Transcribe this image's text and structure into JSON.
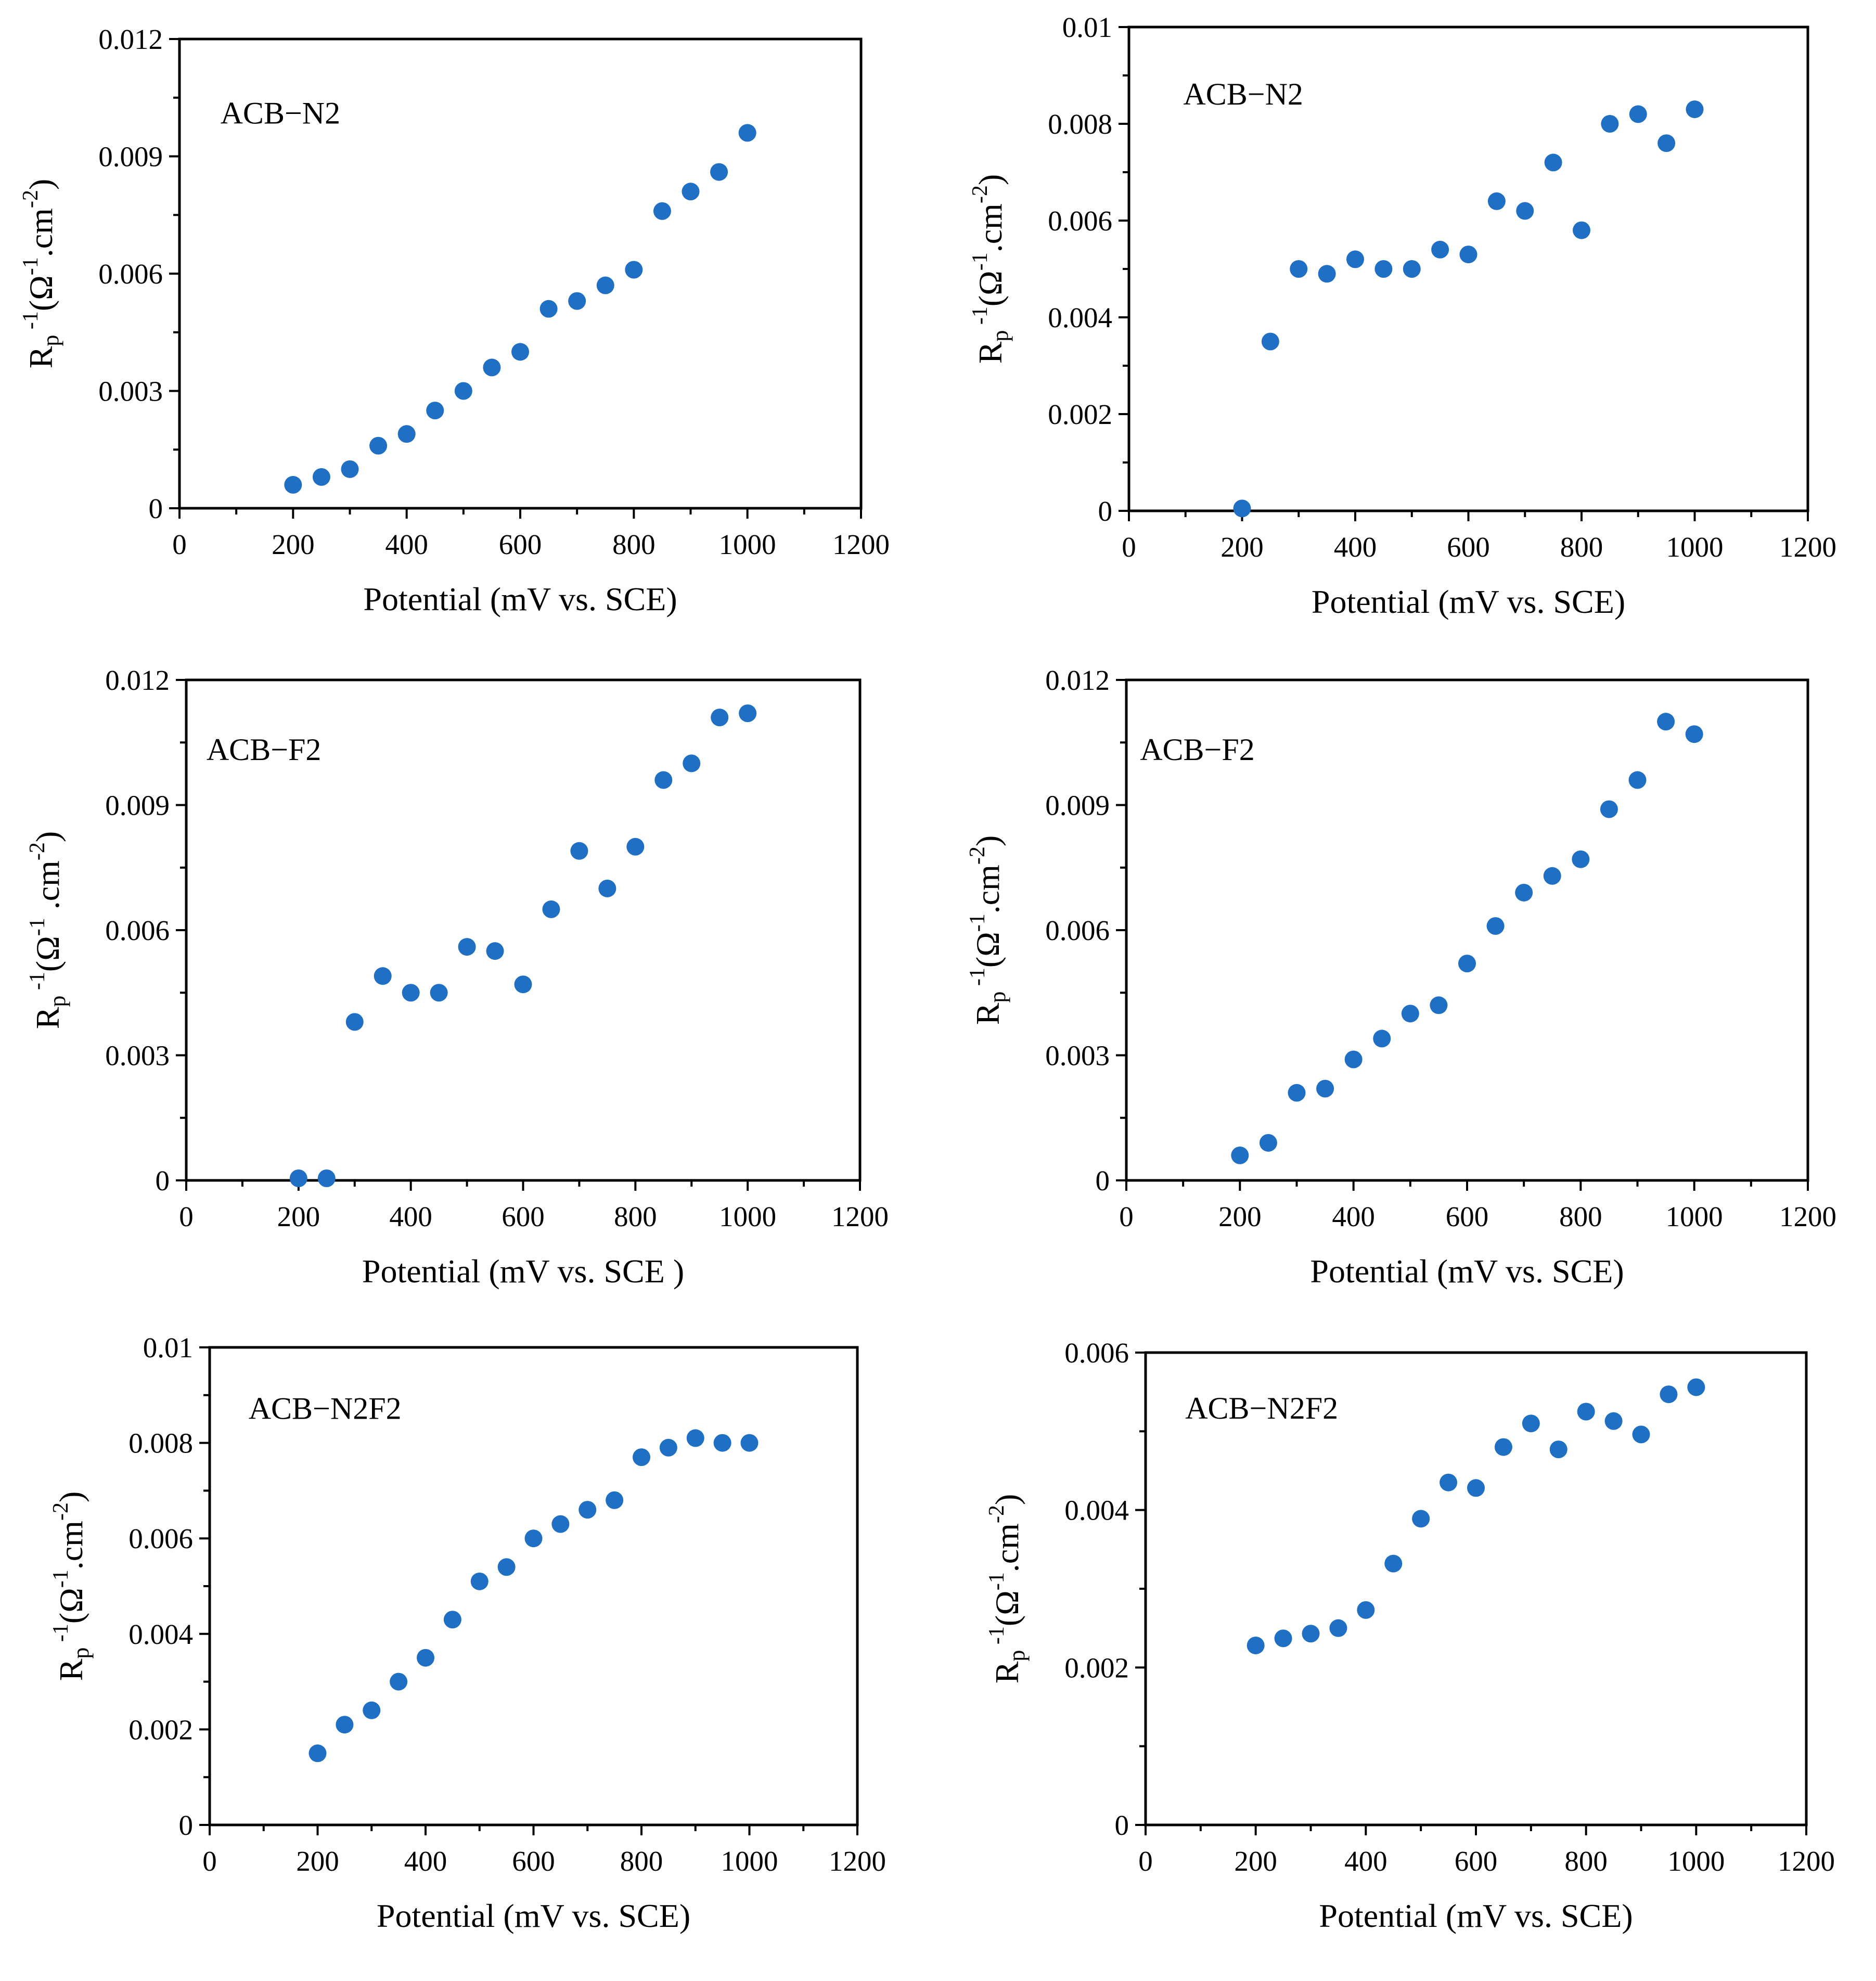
{
  "figure": {
    "marker_color": "#1f6fc5",
    "background": "#ffffff"
  },
  "chart_data": [
    {
      "type": "scatter",
      "label": "ACB−N2",
      "xlabel": "Potential (mV vs. SCE)",
      "ylabel": {
        "base": "R",
        "sub": "p",
        "sup": "-1",
        "rest": "(Ω",
        "sup2": "-1",
        "unit": ".cm",
        "sup3": "-2",
        "close": ")"
      },
      "xlim": [
        0,
        1200
      ],
      "ylim": [
        0,
        0.012
      ],
      "xticks": [
        "0",
        "200",
        "400",
        "600",
        "800",
        "1000",
        "1200"
      ],
      "yticks": [
        "0",
        "0.003",
        "0.006",
        "0.009",
        "0.012"
      ],
      "x": [
        200,
        250,
        300,
        350,
        400,
        450,
        500,
        550,
        600,
        650,
        700,
        750,
        800,
        850,
        900,
        950,
        1000
      ],
      "y": [
        0.0006,
        0.0008,
        0.001,
        0.0016,
        0.0019,
        0.0025,
        0.003,
        0.0036,
        0.004,
        0.0051,
        0.0053,
        0.0057,
        0.0061,
        0.0076,
        0.0081,
        0.0086,
        0.0096
      ]
    },
    {
      "type": "scatter",
      "label": "ACB−N2",
      "xlabel": "Potential (mV vs. SCE)",
      "ylabel": {
        "base": "R",
        "sub": "p",
        "sup": "-1",
        "rest": "(Ω",
        "sup2": "-1",
        "unit": ".cm",
        "sup3": "-2",
        "close": ")"
      },
      "xlim": [
        0,
        1200
      ],
      "ylim": [
        0,
        0.01
      ],
      "xticks": [
        "0",
        "200",
        "400",
        "600",
        "800",
        "1000",
        "1200"
      ],
      "yticks": [
        "0",
        "0.002",
        "0.004",
        "0.006",
        "0.008",
        "0.01"
      ],
      "x": [
        200,
        250,
        300,
        350,
        400,
        450,
        500,
        550,
        600,
        650,
        700,
        750,
        800,
        850,
        900,
        950,
        1000
      ],
      "y": [
        5e-05,
        0.0035,
        0.005,
        0.0049,
        0.0052,
        0.005,
        0.005,
        0.0054,
        0.0053,
        0.0064,
        0.0062,
        0.0072,
        0.0058,
        0.008,
        0.0082,
        0.0076,
        0.0083
      ]
    },
    {
      "type": "scatter",
      "label": "ACB−F2",
      "xlabel": "Potential (mV vs. SCE )",
      "ylabel": {
        "base": "R",
        "sub": "p",
        "sup": "-1",
        "rest": "(Ω",
        "sup2": "-1",
        "unit": " .cm",
        "sup3": "-2",
        "close": ")"
      },
      "xlim": [
        0,
        1200
      ],
      "ylim": [
        0,
        0.012
      ],
      "xticks": [
        "0",
        "200",
        "400",
        "600",
        "800",
        "1000",
        "1200"
      ],
      "yticks": [
        "0",
        "0.003",
        "0.006",
        "0.009",
        "0.012"
      ],
      "x": [
        200,
        250,
        300,
        350,
        400,
        450,
        500,
        550,
        600,
        650,
        700,
        750,
        800,
        850,
        900,
        950,
        1000
      ],
      "y": [
        5e-05,
        5e-05,
        0.0038,
        0.0049,
        0.0045,
        0.0045,
        0.0056,
        0.0055,
        0.0047,
        0.0065,
        0.0079,
        0.007,
        0.008,
        0.0096,
        0.01,
        0.0111,
        0.0112
      ]
    },
    {
      "type": "scatter",
      "label": "ACB−F2",
      "xlabel": "Potential (mV vs. SCE)",
      "ylabel": {
        "base": "R",
        "sub": "p",
        "sup": "-1",
        "rest": "(Ω",
        "sup2": "-1",
        "unit": ".cm",
        "sup3": "-2",
        "close": ")"
      },
      "xlim": [
        0,
        1200
      ],
      "ylim": [
        0,
        0.012
      ],
      "xticks": [
        "0",
        "200",
        "400",
        "600",
        "800",
        "1000",
        "1200"
      ],
      "yticks": [
        "0",
        "0.003",
        "0.006",
        "0.009",
        "0.012"
      ],
      "x": [
        200,
        250,
        300,
        350,
        400,
        450,
        500,
        550,
        600,
        650,
        700,
        750,
        800,
        850,
        900,
        950,
        1000
      ],
      "y": [
        0.0006,
        0.0009,
        0.0021,
        0.0022,
        0.0029,
        0.0034,
        0.004,
        0.0042,
        0.0052,
        0.0061,
        0.0069,
        0.0073,
        0.0077,
        0.0089,
        0.0096,
        0.011,
        0.0107
      ]
    },
    {
      "type": "scatter",
      "label": "ACB−N2F2",
      "xlabel": "Potential (mV vs. SCE)",
      "ylabel": {
        "base": "R",
        "sub": "p",
        "sup": "-1",
        "rest": "(Ω",
        "sup2": "-1",
        "unit": ".cm",
        "sup3": "-2",
        "close": ")"
      },
      "xlim": [
        0,
        1200
      ],
      "ylim": [
        0,
        0.01
      ],
      "xticks": [
        "0",
        "200",
        "400",
        "600",
        "800",
        "1000",
        "1200"
      ],
      "yticks": [
        "0",
        "0.002",
        "0.004",
        "0.006",
        "0.008",
        "0.01"
      ],
      "x": [
        200,
        250,
        300,
        350,
        400,
        450,
        500,
        550,
        600,
        650,
        700,
        750,
        800,
        850,
        900,
        950,
        1000
      ],
      "y": [
        0.0015,
        0.0021,
        0.0024,
        0.003,
        0.0035,
        0.0043,
        0.0051,
        0.0054,
        0.006,
        0.0063,
        0.0066,
        0.0068,
        0.0077,
        0.0079,
        0.0081,
        0.008,
        0.008
      ]
    },
    {
      "type": "scatter",
      "label": "ACB−N2F2",
      "xlabel": "Potential (mV vs. SCE)",
      "ylabel": {
        "base": "R",
        "sub": "p",
        "sup": "-1",
        "rest": "(Ω",
        "sup2": "-1",
        "unit": ".cm",
        "sup3": "-2",
        "close": ")"
      },
      "xlim": [
        0,
        1200
      ],
      "ylim": [
        0,
        0.006
      ],
      "xticks": [
        "0",
        "200",
        "400",
        "600",
        "800",
        "1000",
        "1200"
      ],
      "yticks": [
        "0",
        "0.002",
        "0.004",
        "0.006"
      ],
      "x": [
        200,
        250,
        300,
        350,
        400,
        450,
        500,
        550,
        600,
        650,
        700,
        750,
        800,
        850,
        900,
        950,
        1000
      ],
      "y": [
        0.00228,
        0.00237,
        0.00243,
        0.0025,
        0.00273,
        0.00332,
        0.00389,
        0.00435,
        0.00428,
        0.0048,
        0.0051,
        0.00477,
        0.00525,
        0.00513,
        0.00496,
        0.00547,
        0.00556
      ]
    }
  ]
}
